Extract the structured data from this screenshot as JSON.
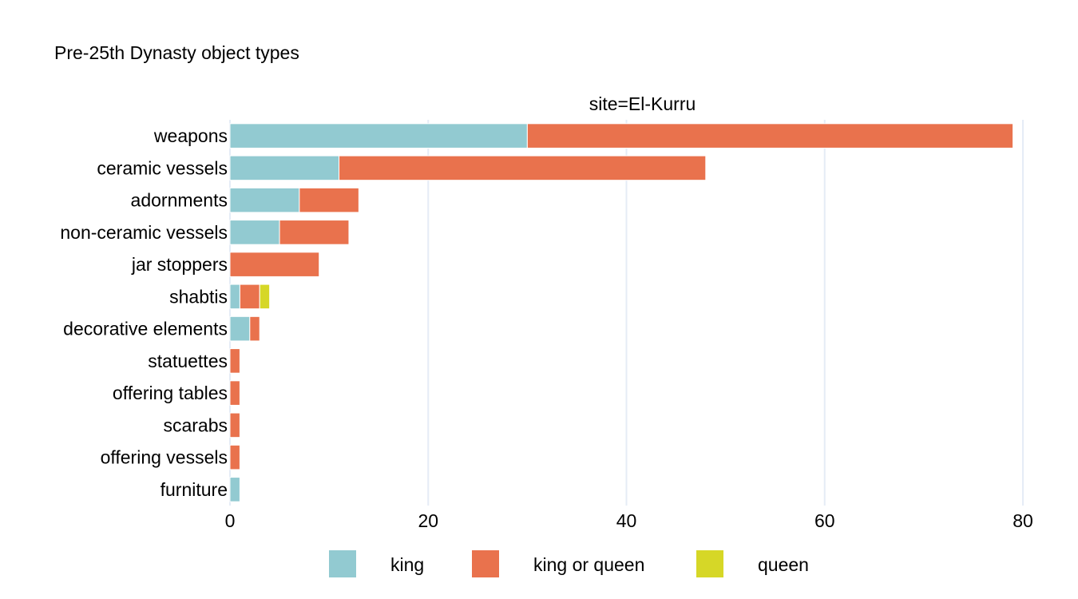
{
  "chart_data": {
    "type": "bar",
    "orientation": "horizontal",
    "stacked": true,
    "title": "Pre-25th Dynasty object types",
    "facet_label": "site=El-Kurru",
    "xlabel": "",
    "ylabel": "",
    "xlim": [
      0,
      80
    ],
    "xticks": [
      0,
      20,
      40,
      60,
      80
    ],
    "grid": true,
    "legend_position": "bottom",
    "categories": [
      "weapons",
      "ceramic vessels",
      "adornments",
      "non-ceramic vessels",
      "jar stoppers",
      "shabtis",
      "decorative elements",
      "statuettes",
      "offering tables",
      "scarabs",
      "offering vessels",
      "furniture"
    ],
    "series": [
      {
        "name": "king",
        "color": "#92cad1",
        "values": [
          30,
          11,
          7,
          5,
          0,
          1,
          2,
          0,
          0,
          0,
          0,
          1
        ]
      },
      {
        "name": "king or queen",
        "color": "#e9724d",
        "values": [
          49,
          37,
          6,
          7,
          9,
          2,
          1,
          1,
          1,
          1,
          1,
          0
        ]
      },
      {
        "name": "queen",
        "color": "#d6d727",
        "values": [
          0,
          0,
          0,
          0,
          0,
          1,
          0,
          0,
          0,
          0,
          0,
          0
        ]
      }
    ]
  }
}
